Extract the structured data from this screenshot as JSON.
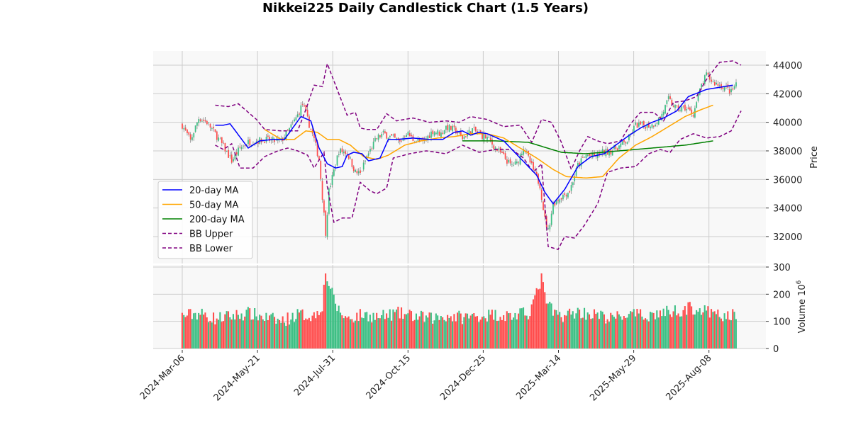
{
  "chart_data": {
    "type": "candlestick",
    "title": "Nikkei225 Daily Candlestick Chart (1.5 Years)",
    "price_axis": {
      "label": "Price",
      "ticks": [
        32000,
        34000,
        36000,
        38000,
        40000,
        42000,
        44000
      ],
      "ylim": [
        30900,
        45000
      ]
    },
    "volume_axis": {
      "label": "Volume",
      "exponent_label": "10",
      "exponent": "6",
      "ticks": [
        0,
        100,
        200,
        300
      ],
      "ylim": [
        0,
        300
      ]
    },
    "x_ticks": [
      "2024-Mar-06",
      "2024-May-21",
      "2024-Jul-31",
      "2024-Oct-15",
      "2024-Dec-25",
      "2025-Mar-14",
      "2025-May-29",
      "2025-Aug-08"
    ],
    "grid": true,
    "legend": {
      "placement": "center-left",
      "entries": [
        {
          "label": "20-day MA",
          "color": "#0000ff",
          "style": "solid"
        },
        {
          "label": "50-day MA",
          "color": "#ffa500",
          "style": "solid"
        },
        {
          "label": "200-day MA",
          "color": "#008000",
          "style": "solid"
        },
        {
          "label": "BB Upper",
          "color": "#800080",
          "style": "dashed"
        },
        {
          "label": "BB Lower",
          "color": "#800080",
          "style": "dashed"
        }
      ]
    },
    "colors": {
      "up": "#3dbf84",
      "down": "#ff4d4d",
      "wick": "#888888",
      "plot_bg": "#f8f8f8",
      "grid": "#cccccc"
    },
    "trading_days": 370,
    "close_waypoints": [
      [
        0,
        39800
      ],
      [
        5,
        38700
      ],
      [
        10,
        40300
      ],
      [
        15,
        40000
      ],
      [
        20,
        39200
      ],
      [
        25,
        38300
      ],
      [
        30,
        37300
      ],
      [
        35,
        38200
      ],
      [
        40,
        38600
      ],
      [
        45,
        38700
      ],
      [
        50,
        38800
      ],
      [
        55,
        38700
      ],
      [
        60,
        38700
      ],
      [
        65,
        39500
      ],
      [
        70,
        40500
      ],
      [
        73,
        41300
      ],
      [
        76,
        40200
      ],
      [
        80,
        38800
      ],
      [
        83,
        37400
      ],
      [
        85,
        34800
      ],
      [
        87,
        32300
      ],
      [
        89,
        35200
      ],
      [
        92,
        36600
      ],
      [
        95,
        38000
      ],
      [
        100,
        37900
      ],
      [
        105,
        36500
      ],
      [
        108,
        36400
      ],
      [
        112,
        37600
      ],
      [
        118,
        38900
      ],
      [
        122,
        39200
      ],
      [
        128,
        38900
      ],
      [
        132,
        38600
      ],
      [
        136,
        39300
      ],
      [
        140,
        38800
      ],
      [
        146,
        38600
      ],
      [
        152,
        39400
      ],
      [
        157,
        39200
      ],
      [
        160,
        39700
      ],
      [
        166,
        39400
      ],
      [
        170,
        38900
      ],
      [
        176,
        39500
      ],
      [
        180,
        39200
      ],
      [
        185,
        38900
      ],
      [
        190,
        38200
      ],
      [
        195,
        37600
      ],
      [
        199,
        37000
      ],
      [
        203,
        37100
      ],
      [
        207,
        38300
      ],
      [
        211,
        37200
      ],
      [
        214,
        36400
      ],
      [
        217,
        35600
      ],
      [
        220,
        33200
      ],
      [
        222,
        32400
      ],
      [
        225,
        34300
      ],
      [
        230,
        34800
      ],
      [
        235,
        35200
      ],
      [
        240,
        37000
      ],
      [
        245,
        37700
      ],
      [
        250,
        37600
      ],
      [
        255,
        37900
      ],
      [
        260,
        38000
      ],
      [
        266,
        38400
      ],
      [
        270,
        38700
      ],
      [
        275,
        39800
      ],
      [
        280,
        39800
      ],
      [
        285,
        39800
      ],
      [
        290,
        40300
      ],
      [
        295,
        41600
      ],
      [
        300,
        40900
      ],
      [
        305,
        41000
      ],
      [
        310,
        40600
      ],
      [
        315,
        42600
      ],
      [
        318,
        43300
      ],
      [
        322,
        42800
      ],
      [
        326,
        42600
      ],
      [
        330,
        42400
      ],
      [
        333,
        42100
      ],
      [
        336,
        42700
      ]
    ],
    "ma20": [
      [
        20,
        39800
      ],
      [
        25,
        39800
      ],
      [
        29,
        39900
      ],
      [
        40,
        38200
      ],
      [
        47,
        38700
      ],
      [
        55,
        38800
      ],
      [
        62,
        38800
      ],
      [
        72,
        40400
      ],
      [
        78,
        40100
      ],
      [
        83,
        38200
      ],
      [
        88,
        37100
      ],
      [
        93,
        36800
      ],
      [
        97,
        36900
      ],
      [
        100,
        37700
      ],
      [
        104,
        37900
      ],
      [
        109,
        37800
      ],
      [
        113,
        37300
      ],
      [
        120,
        37500
      ],
      [
        125,
        38800
      ],
      [
        130,
        38800
      ],
      [
        140,
        38900
      ],
      [
        150,
        38800
      ],
      [
        158,
        38800
      ],
      [
        165,
        39300
      ],
      [
        170,
        39400
      ],
      [
        175,
        39100
      ],
      [
        180,
        39300
      ],
      [
        185,
        39200
      ],
      [
        195,
        38700
      ],
      [
        205,
        37500
      ],
      [
        215,
        36300
      ],
      [
        220,
        35100
      ],
      [
        225,
        34300
      ],
      [
        232,
        35300
      ],
      [
        240,
        36900
      ],
      [
        248,
        37600
      ],
      [
        256,
        37800
      ],
      [
        263,
        38400
      ],
      [
        270,
        39000
      ],
      [
        278,
        39600
      ],
      [
        285,
        40000
      ],
      [
        292,
        40300
      ],
      [
        300,
        40800
      ],
      [
        307,
        41800
      ],
      [
        318,
        42300
      ],
      [
        334,
        42600
      ]
    ],
    "ma50": [
      [
        50,
        39500
      ],
      [
        60,
        38800
      ],
      [
        68,
        38800
      ],
      [
        75,
        39400
      ],
      [
        82,
        39300
      ],
      [
        88,
        38800
      ],
      [
        95,
        38800
      ],
      [
        102,
        38400
      ],
      [
        110,
        37600
      ],
      [
        118,
        37400
      ],
      [
        125,
        37700
      ],
      [
        135,
        38400
      ],
      [
        145,
        38700
      ],
      [
        155,
        38900
      ],
      [
        165,
        39000
      ],
      [
        175,
        39200
      ],
      [
        185,
        39200
      ],
      [
        195,
        38900
      ],
      [
        205,
        38200
      ],
      [
        215,
        37500
      ],
      [
        225,
        36700
      ],
      [
        233,
        36200
      ],
      [
        245,
        36100
      ],
      [
        255,
        36200
      ],
      [
        265,
        37500
      ],
      [
        275,
        38400
      ],
      [
        285,
        39000
      ],
      [
        295,
        39700
      ],
      [
        305,
        40400
      ],
      [
        315,
        40900
      ],
      [
        322,
        41200
      ]
    ],
    "ma200": [
      [
        170,
        38700
      ],
      [
        190,
        38700
      ],
      [
        210,
        38600
      ],
      [
        230,
        37900
      ],
      [
        245,
        37800
      ],
      [
        265,
        38000
      ],
      [
        285,
        38200
      ],
      [
        305,
        38400
      ],
      [
        322,
        38700
      ]
    ],
    "bb_upper": [
      [
        20,
        41200
      ],
      [
        28,
        41100
      ],
      [
        34,
        41300
      ],
      [
        45,
        40200
      ],
      [
        50,
        39500
      ],
      [
        60,
        39400
      ],
      [
        70,
        39400
      ],
      [
        75,
        40900
      ],
      [
        80,
        42600
      ],
      [
        85,
        42500
      ],
      [
        88,
        44100
      ],
      [
        93,
        42600
      ],
      [
        100,
        40500
      ],
      [
        105,
        40700
      ],
      [
        108,
        39600
      ],
      [
        112,
        39500
      ],
      [
        118,
        39500
      ],
      [
        124,
        40600
      ],
      [
        130,
        40100
      ],
      [
        140,
        40300
      ],
      [
        150,
        40000
      ],
      [
        160,
        40100
      ],
      [
        168,
        40000
      ],
      [
        175,
        40400
      ],
      [
        185,
        40200
      ],
      [
        195,
        39700
      ],
      [
        205,
        39800
      ],
      [
        212,
        38600
      ],
      [
        218,
        40200
      ],
      [
        224,
        40000
      ],
      [
        230,
        38600
      ],
      [
        236,
        36700
      ],
      [
        241,
        38000
      ],
      [
        246,
        39000
      ],
      [
        252,
        38700
      ],
      [
        258,
        38500
      ],
      [
        266,
        38700
      ],
      [
        272,
        39900
      ],
      [
        278,
        40700
      ],
      [
        286,
        40700
      ],
      [
        292,
        40100
      ],
      [
        298,
        41400
      ],
      [
        305,
        41500
      ],
      [
        312,
        41800
      ],
      [
        318,
        43000
      ],
      [
        326,
        44200
      ],
      [
        334,
        44300
      ],
      [
        339,
        44000
      ]
    ],
    "bb_lower": [
      [
        20,
        38400
      ],
      [
        25,
        38100
      ],
      [
        30,
        38500
      ],
      [
        35,
        36800
      ],
      [
        43,
        36800
      ],
      [
        50,
        37600
      ],
      [
        58,
        38000
      ],
      [
        64,
        38200
      ],
      [
        70,
        38000
      ],
      [
        76,
        37700
      ],
      [
        80,
        36800
      ],
      [
        86,
        37900
      ],
      [
        88,
        35500
      ],
      [
        92,
        33000
      ],
      [
        97,
        33300
      ],
      [
        103,
        33300
      ],
      [
        108,
        35800
      ],
      [
        114,
        35200
      ],
      [
        118,
        35000
      ],
      [
        124,
        35400
      ],
      [
        128,
        37500
      ],
      [
        138,
        37800
      ],
      [
        148,
        38000
      ],
      [
        160,
        37800
      ],
      [
        170,
        38400
      ],
      [
        180,
        37900
      ],
      [
        190,
        38100
      ],
      [
        200,
        38100
      ],
      [
        207,
        37500
      ],
      [
        213,
        36500
      ],
      [
        218,
        37100
      ],
      [
        222,
        31300
      ],
      [
        228,
        31100
      ],
      [
        232,
        32000
      ],
      [
        238,
        31900
      ],
      [
        244,
        32800
      ],
      [
        252,
        34300
      ],
      [
        258,
        36500
      ],
      [
        266,
        36800
      ],
      [
        275,
        36900
      ],
      [
        283,
        37800
      ],
      [
        290,
        38100
      ],
      [
        296,
        37900
      ],
      [
        302,
        38800
      ],
      [
        310,
        39200
      ],
      [
        318,
        38900
      ],
      [
        326,
        39000
      ],
      [
        333,
        39400
      ],
      [
        339,
        40800
      ]
    ],
    "volume_waypoints": [
      [
        0,
        120
      ],
      [
        10,
        130
      ],
      [
        20,
        110
      ],
      [
        30,
        120
      ],
      [
        40,
        130
      ],
      [
        50,
        115
      ],
      [
        60,
        100
      ],
      [
        70,
        125
      ],
      [
        80,
        120
      ],
      [
        85,
        160
      ],
      [
        87,
        280
      ],
      [
        89,
        240
      ],
      [
        92,
        180
      ],
      [
        95,
        140
      ],
      [
        100,
        110
      ],
      [
        110,
        125
      ],
      [
        120,
        115
      ],
      [
        130,
        130
      ],
      [
        140,
        120
      ],
      [
        150,
        110
      ],
      [
        160,
        120
      ],
      [
        170,
        115
      ],
      [
        180,
        120
      ],
      [
        190,
        125
      ],
      [
        200,
        120
      ],
      [
        210,
        130
      ],
      [
        215,
        200
      ],
      [
        218,
        260
      ],
      [
        220,
        190
      ],
      [
        225,
        130
      ],
      [
        230,
        120
      ],
      [
        240,
        135
      ],
      [
        250,
        125
      ],
      [
        260,
        110
      ],
      [
        270,
        125
      ],
      [
        280,
        120
      ],
      [
        290,
        130
      ],
      [
        300,
        140
      ],
      [
        310,
        150
      ],
      [
        320,
        130
      ],
      [
        330,
        115
      ],
      [
        336,
        130
      ]
    ]
  }
}
